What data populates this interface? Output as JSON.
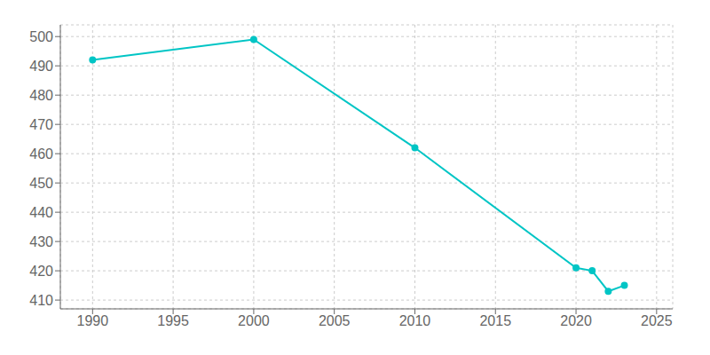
{
  "chart_data": {
    "type": "line",
    "x": [
      1990,
      2000,
      2010,
      2020,
      2021,
      2022,
      2023
    ],
    "values": [
      492,
      499,
      462,
      421,
      420,
      413,
      415
    ],
    "color": "#00C5C5",
    "marker": "circle",
    "xlim": [
      1988,
      2026
    ],
    "ylim": [
      407,
      504
    ],
    "xticks": [
      1990,
      1995,
      2000,
      2005,
      2010,
      2015,
      2020,
      2025
    ],
    "yticks": [
      410,
      420,
      430,
      440,
      450,
      460,
      470,
      480,
      490,
      500
    ],
    "grid": true
  }
}
